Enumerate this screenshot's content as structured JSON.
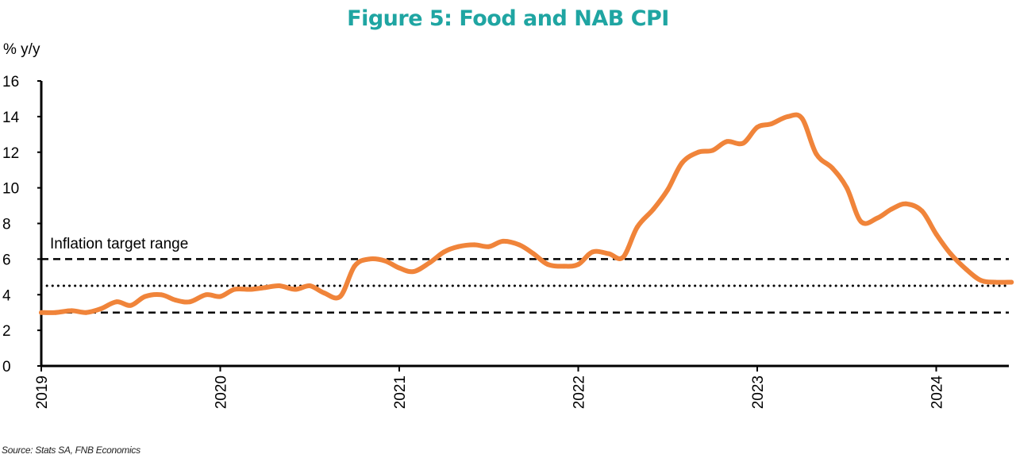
{
  "title": "Figure 5: Food and NAB CPI",
  "ylabel": "% y/y",
  "source": "Source: Stats SA, FNB Economics",
  "colors": {
    "title": "#1fa5a2",
    "series": "#f0843a",
    "lines": "#000000"
  },
  "chart_data": {
    "type": "line",
    "title": "Figure 5: Food and NAB CPI",
    "xlabel": "",
    "ylabel": "% y/y",
    "ylim": [
      0,
      16
    ],
    "yticks": [
      0,
      2,
      4,
      6,
      8,
      10,
      12,
      14,
      16
    ],
    "xlim": [
      2019.0,
      2024.42
    ],
    "xticks": [
      "2019",
      "2020",
      "2021",
      "2022",
      "2023",
      "2024"
    ],
    "grid": false,
    "annotations": [
      {
        "text": "Inflation target range"
      }
    ],
    "reference_lines": [
      {
        "y": 3,
        "style": "dashed"
      },
      {
        "y": 6,
        "style": "dashed"
      },
      {
        "y": 4.5,
        "style": "dotted"
      }
    ],
    "series": [
      {
        "x": [
          2019.0,
          2019.08,
          2019.17,
          2019.25,
          2019.33,
          2019.42,
          2019.5,
          2019.58,
          2019.67,
          2019.75,
          2019.83,
          2019.92,
          2020.0,
          2020.08,
          2020.17,
          2020.25,
          2020.33,
          2020.42,
          2020.5,
          2020.58,
          2020.67,
          2020.75,
          2020.83,
          2020.92,
          2021.0,
          2021.08,
          2021.17,
          2021.25,
          2021.33,
          2021.42,
          2021.5,
          2021.58,
          2021.67,
          2021.75,
          2021.83,
          2021.92,
          2022.0,
          2022.08,
          2022.17,
          2022.25,
          2022.33,
          2022.42,
          2022.5,
          2022.58,
          2022.67,
          2022.75,
          2022.83,
          2022.92,
          2023.0,
          2023.08,
          2023.17,
          2023.25,
          2023.33,
          2023.42,
          2023.5,
          2023.58,
          2023.67,
          2023.75,
          2023.83,
          2023.92,
          2024.0,
          2024.08,
          2024.17,
          2024.25,
          2024.33,
          2024.42
        ],
        "values": [
          3.0,
          3.0,
          3.1,
          3.0,
          3.2,
          3.6,
          3.4,
          3.9,
          4.0,
          3.7,
          3.6,
          4.0,
          3.9,
          4.3,
          4.3,
          4.4,
          4.5,
          4.3,
          4.5,
          4.1,
          3.9,
          5.6,
          6.0,
          5.9,
          5.5,
          5.3,
          5.8,
          6.4,
          6.7,
          6.8,
          6.7,
          7.0,
          6.8,
          6.3,
          5.7,
          5.6,
          5.7,
          6.4,
          6.3,
          6.1,
          7.8,
          8.8,
          9.9,
          11.4,
          12.0,
          12.1,
          12.6,
          12.5,
          13.4,
          13.6,
          14.0,
          13.9,
          11.9,
          11.1,
          10.0,
          8.1,
          8.3,
          8.8,
          9.1,
          8.7,
          7.4,
          6.3,
          5.4,
          4.8,
          4.7,
          4.7
        ]
      }
    ]
  }
}
